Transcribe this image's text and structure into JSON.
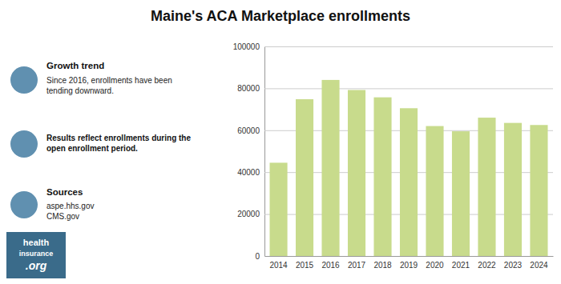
{
  "chart_data": {
    "type": "bar",
    "title": "Maine's ACA Marketplace enrollments",
    "categories": [
      "2014",
      "2015",
      "2016",
      "2017",
      "2018",
      "2019",
      "2020",
      "2021",
      "2022",
      "2023",
      "2024"
    ],
    "values": [
      44500,
      74800,
      84000,
      79200,
      75700,
      70500,
      62000,
      59500,
      66000,
      63500,
      62500
    ],
    "color": "#c8db8c",
    "ylim": [
      0,
      100000
    ],
    "yticks": [
      0,
      20000,
      40000,
      60000,
      80000,
      100000
    ],
    "grid": true,
    "annotations": [
      {
        "title": "Growth trend",
        "text": "Since 2016, enrollments have been\ntending downward."
      },
      {
        "title": "Results reflect enrollments during the\nopen enrollment period."
      },
      {
        "title": "Sources",
        "text": "aspe.hhs.gov\nCMS.gov"
      },
      {
        "text": "health\ninsurance\n.org"
      }
    ]
  }
}
